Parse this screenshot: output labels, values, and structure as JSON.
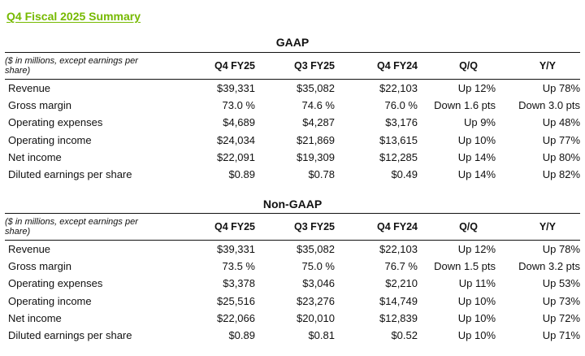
{
  "title": "Q4 Fiscal 2025 Summary",
  "sections": [
    {
      "heading": "GAAP",
      "note": "($ in millions, except earnings per share)",
      "columns": [
        "Q4 FY25",
        "Q3 FY25",
        "Q4 FY24",
        "Q/Q",
        "Y/Y"
      ],
      "rows": [
        {
          "label": "Revenue",
          "values": [
            "$39,331",
            "$35,082",
            "$22,103",
            "Up 12%",
            "Up 78%"
          ]
        },
        {
          "label": "Gross margin",
          "values": [
            "73.0 %",
            "74.6 %",
            "76.0 %",
            "Down 1.6 pts",
            "Down 3.0 pts"
          ]
        },
        {
          "label": "Operating expenses",
          "values": [
            "$4,689",
            "$4,287",
            "$3,176",
            "Up 9%",
            "Up 48%"
          ]
        },
        {
          "label": "Operating income",
          "values": [
            "$24,034",
            "$21,869",
            "$13,615",
            "Up 10%",
            "Up 77%"
          ]
        },
        {
          "label": "Net income",
          "values": [
            "$22,091",
            "$19,309",
            "$12,285",
            "Up 14%",
            "Up 80%"
          ]
        },
        {
          "label": "Diluted earnings per share",
          "values": [
            "$0.89",
            "$0.78",
            "$0.49",
            "Up 14%",
            "Up 82%"
          ]
        }
      ]
    },
    {
      "heading": "Non-GAAP",
      "note": "($ in millions, except earnings per share)",
      "columns": [
        "Q4 FY25",
        "Q3 FY25",
        "Q4 FY24",
        "Q/Q",
        "Y/Y"
      ],
      "rows": [
        {
          "label": "Revenue",
          "values": [
            "$39,331",
            "$35,082",
            "$22,103",
            "Up 12%",
            "Up 78%"
          ]
        },
        {
          "label": "Gross margin",
          "values": [
            "73.5 %",
            "75.0 %",
            "76.7 %",
            "Down 1.5 pts",
            "Down 3.2 pts"
          ]
        },
        {
          "label": "Operating expenses",
          "values": [
            "$3,378",
            "$3,046",
            "$2,210",
            "Up 11%",
            "Up 53%"
          ]
        },
        {
          "label": "Operating income",
          "values": [
            "$25,516",
            "$23,276",
            "$14,749",
            "Up 10%",
            "Up 73%"
          ]
        },
        {
          "label": "Net income",
          "values": [
            "$22,066",
            "$20,010",
            "$12,839",
            "Up 10%",
            "Up 72%"
          ]
        },
        {
          "label": "Diluted earnings per share",
          "values": [
            "$0.89",
            "$0.81",
            "$0.52",
            "Up 10%",
            "Up 71%"
          ]
        }
      ]
    }
  ],
  "colors": {
    "title": "#76b900",
    "text": "#111111",
    "rule": "#111111"
  }
}
